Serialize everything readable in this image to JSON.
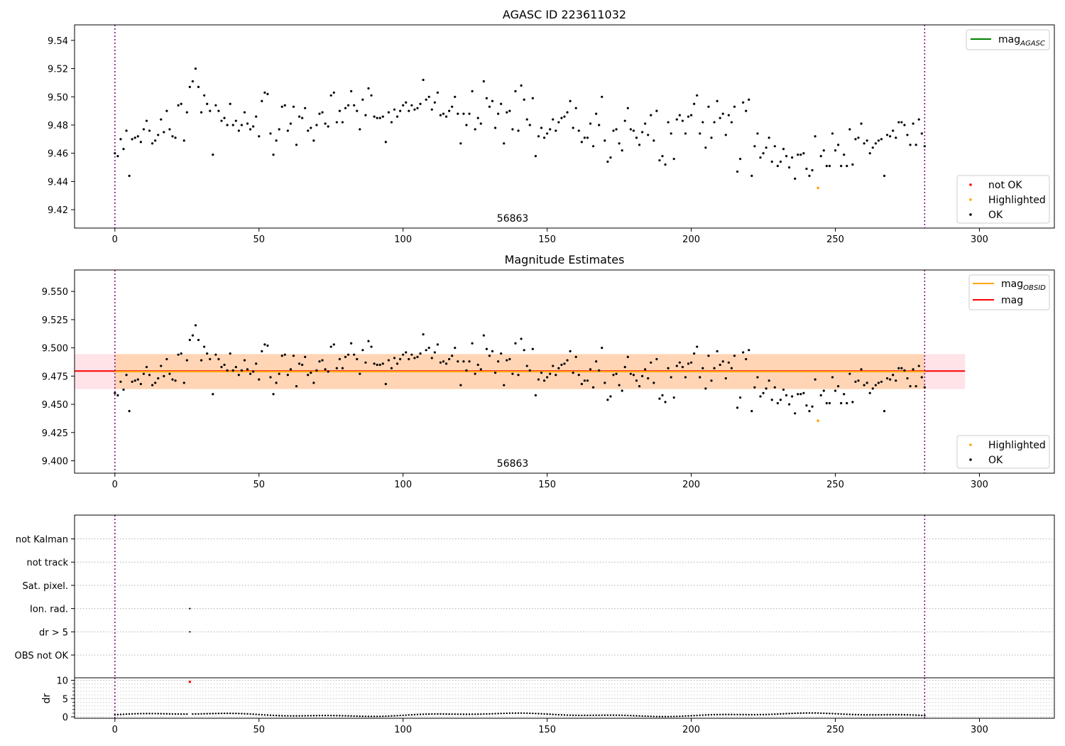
{
  "chart_data": [
    {
      "type": "scatter",
      "title": "AGASC ID 223611032",
      "xlim": [
        -14,
        326
      ],
      "ylim": [
        9.407,
        9.551
      ],
      "xticks": [
        0,
        50,
        100,
        150,
        200,
        250,
        300
      ],
      "yticks": [
        9.42,
        9.44,
        9.46,
        9.48,
        9.5,
        9.52,
        9.54
      ],
      "vlines": [
        0,
        281
      ],
      "annotation": {
        "text": "56863",
        "x": 140
      },
      "legend_upper": {
        "location": "upper-right",
        "entries": [
          {
            "label": "mag",
            "sub": "AGASC",
            "color": "#008000"
          }
        ]
      },
      "legend_lower": {
        "location": "lower-right",
        "entries": [
          {
            "label": "not OK",
            "color": "#ff0000"
          },
          {
            "label": "Highlighted",
            "color": "#ffa500"
          },
          {
            "label": "OK",
            "color": "#000000"
          }
        ]
      }
    },
    {
      "type": "scatter",
      "title": "Magnitude Estimates",
      "xlim": [
        -14,
        326
      ],
      "ylim": [
        9.389,
        9.569
      ],
      "xticks": [
        0,
        50,
        100,
        150,
        200,
        250,
        300
      ],
      "yticks": [
        9.4,
        9.425,
        9.45,
        9.475,
        9.5,
        9.525,
        9.55
      ],
      "vlines": [
        0,
        281
      ],
      "annotation": {
        "text": "56863",
        "x": 140
      },
      "mag_line": 9.4795,
      "mag_obsid_line": 9.479,
      "band": {
        "low": 9.4635,
        "high": 9.4945,
        "x_from": -14,
        "x_to": 295
      },
      "legend_upper": {
        "location": "upper-right",
        "entries": [
          {
            "label": "mag",
            "sub": "OBSID",
            "color": "#ffa500"
          },
          {
            "label": "mag",
            "sub": "",
            "color": "#ff0000"
          }
        ]
      },
      "legend_lower": {
        "location": "lower-right",
        "entries": [
          {
            "label": "Highlighted",
            "color": "#ffa500"
          },
          {
            "label": "OK",
            "color": "#000000"
          }
        ]
      }
    },
    {
      "type": "scatter",
      "title": "",
      "xlim": [
        -14,
        326
      ],
      "xticks": [
        0,
        50,
        100,
        150,
        200,
        250,
        300
      ],
      "vlines": [
        0,
        281
      ],
      "flag_rows": [
        "not Kalman",
        "not track",
        "Sat. pixel.",
        "Ion. rad.",
        "dr > 5",
        "OBS not OK"
      ],
      "flag_points": [
        {
          "row": "Ion. rad.",
          "x": 26
        },
        {
          "row": "dr > 5",
          "x": 26
        }
      ]
    },
    {
      "type": "scatter",
      "title": "",
      "ylabel": "dr",
      "xlim": [
        -14,
        326
      ],
      "ylim": [
        -0.4,
        10.7
      ],
      "yticks": [
        0,
        5,
        10
      ],
      "xticks": [
        0,
        50,
        100,
        150,
        200,
        250,
        300
      ],
      "vlines": [
        0,
        281
      ],
      "outlier": {
        "x": 26,
        "y": 9.6
      }
    }
  ],
  "magnitude_series": {
    "x_start": 0,
    "x_end": 281,
    "highlighted": {
      "x": 244,
      "y": 9.4355
    },
    "points": [
      {
        "x": 0,
        "y": 9.46
      },
      {
        "x": 1,
        "y": 9.458
      },
      {
        "x": 2,
        "y": 9.47
      },
      {
        "x": 3,
        "y": 9.463
      },
      {
        "x": 4,
        "y": 9.476
      },
      {
        "x": 5,
        "y": 9.444
      },
      {
        "x": 6,
        "y": 9.47
      },
      {
        "x": 7,
        "y": 9.471
      },
      {
        "x": 8,
        "y": 9.472
      },
      {
        "x": 9,
        "y": 9.468
      },
      {
        "x": 10,
        "y": 9.477
      },
      {
        "x": 11,
        "y": 9.483
      },
      {
        "x": 12,
        "y": 9.476
      },
      {
        "x": 13,
        "y": 9.467
      },
      {
        "x": 14,
        "y": 9.469
      },
      {
        "x": 15,
        "y": 9.473
      },
      {
        "x": 16,
        "y": 9.484
      },
      {
        "x": 17,
        "y": 9.475
      },
      {
        "x": 18,
        "y": 9.49
      },
      {
        "x": 19,
        "y": 9.477
      },
      {
        "x": 20,
        "y": 9.472
      },
      {
        "x": 21,
        "y": 9.471
      },
      {
        "x": 22,
        "y": 9.494
      },
      {
        "x": 23,
        "y": 9.495
      },
      {
        "x": 24,
        "y": 9.469
      },
      {
        "x": 25,
        "y": 9.489
      },
      {
        "x": 26,
        "y": 9.507
      },
      {
        "x": 27,
        "y": 9.511
      },
      {
        "x": 28,
        "y": 9.52
      },
      {
        "x": 29,
        "y": 9.507
      },
      {
        "x": 30,
        "y": 9.489
      },
      {
        "x": 31,
        "y": 9.501
      },
      {
        "x": 32,
        "y": 9.495
      },
      {
        "x": 33,
        "y": 9.49
      },
      {
        "x": 34,
        "y": 9.459
      },
      {
        "x": 35,
        "y": 9.494
      },
      {
        "x": 36,
        "y": 9.49
      },
      {
        "x": 37,
        "y": 9.483
      },
      {
        "x": 38,
        "y": 9.485
      },
      {
        "x": 39,
        "y": 9.48
      },
      {
        "x": 40,
        "y": 9.495
      },
      {
        "x": 41,
        "y": 9.48
      },
      {
        "x": 42,
        "y": 9.483
      },
      {
        "x": 43,
        "y": 9.476
      },
      {
        "x": 44,
        "y": 9.48
      },
      {
        "x": 45,
        "y": 9.489
      },
      {
        "x": 46,
        "y": 9.481
      },
      {
        "x": 47,
        "y": 9.477
      },
      {
        "x": 48,
        "y": 9.479
      },
      {
        "x": 49,
        "y": 9.486
      },
      {
        "x": 50,
        "y": 9.472
      },
      {
        "x": 51,
        "y": 9.497
      },
      {
        "x": 52,
        "y": 9.503
      },
      {
        "x": 53,
        "y": 9.502
      },
      {
        "x": 54,
        "y": 9.474
      },
      {
        "x": 55,
        "y": 9.459
      },
      {
        "x": 56,
        "y": 9.469
      },
      {
        "x": 57,
        "y": 9.477
      },
      {
        "x": 58,
        "y": 9.493
      },
      {
        "x": 59,
        "y": 9.494
      },
      {
        "x": 60,
        "y": 9.476
      },
      {
        "x": 61,
        "y": 9.481
      },
      {
        "x": 62,
        "y": 9.493
      },
      {
        "x": 63,
        "y": 9.466
      },
      {
        "x": 64,
        "y": 9.486
      },
      {
        "x": 65,
        "y": 9.485
      },
      {
        "x": 66,
        "y": 9.492
      },
      {
        "x": 67,
        "y": 9.476
      },
      {
        "x": 68,
        "y": 9.478
      },
      {
        "x": 69,
        "y": 9.469
      },
      {
        "x": 70,
        "y": 9.48
      },
      {
        "x": 71,
        "y": 9.488
      },
      {
        "x": 72,
        "y": 9.489
      },
      {
        "x": 73,
        "y": 9.481
      },
      {
        "x": 74,
        "y": 9.479
      },
      {
        "x": 75,
        "y": 9.501
      },
      {
        "x": 76,
        "y": 9.503
      },
      {
        "x": 77,
        "y": 9.482
      },
      {
        "x": 78,
        "y": 9.49
      },
      {
        "x": 79,
        "y": 9.482
      },
      {
        "x": 80,
        "y": 9.492
      },
      {
        "x": 81,
        "y": 9.494
      },
      {
        "x": 82,
        "y": 9.504
      },
      {
        "x": 83,
        "y": 9.494
      },
      {
        "x": 84,
        "y": 9.49
      },
      {
        "x": 85,
        "y": 9.477
      },
      {
        "x": 86,
        "y": 9.498
      },
      {
        "x": 87,
        "y": 9.487
      },
      {
        "x": 88,
        "y": 9.506
      },
      {
        "x": 89,
        "y": 9.501
      },
      {
        "x": 90,
        "y": 9.486
      },
      {
        "x": 91,
        "y": 9.485
      },
      {
        "x": 92,
        "y": 9.485
      },
      {
        "x": 93,
        "y": 9.486
      },
      {
        "x": 94,
        "y": 9.468
      },
      {
        "x": 95,
        "y": 9.489
      },
      {
        "x": 96,
        "y": 9.482
      },
      {
        "x": 97,
        "y": 9.491
      },
      {
        "x": 98,
        "y": 9.486
      },
      {
        "x": 99,
        "y": 9.49
      },
      {
        "x": 100,
        "y": 9.494
      },
      {
        "x": 101,
        "y": 9.496
      },
      {
        "x": 102,
        "y": 9.49
      },
      {
        "x": 103,
        "y": 9.494
      },
      {
        "x": 104,
        "y": 9.491
      },
      {
        "x": 105,
        "y": 9.492
      },
      {
        "x": 106,
        "y": 9.495
      },
      {
        "x": 107,
        "y": 9.512
      },
      {
        "x": 108,
        "y": 9.498
      },
      {
        "x": 109,
        "y": 9.5
      },
      {
        "x": 110,
        "y": 9.491
      },
      {
        "x": 111,
        "y": 9.496
      },
      {
        "x": 112,
        "y": 9.503
      },
      {
        "x": 113,
        "y": 9.487
      },
      {
        "x": 114,
        "y": 9.488
      },
      {
        "x": 115,
        "y": 9.486
      },
      {
        "x": 116,
        "y": 9.49
      },
      {
        "x": 117,
        "y": 9.493
      },
      {
        "x": 118,
        "y": 9.5
      },
      {
        "x": 119,
        "y": 9.488
      },
      {
        "x": 120,
        "y": 9.467
      },
      {
        "x": 121,
        "y": 9.488
      },
      {
        "x": 122,
        "y": 9.48
      },
      {
        "x": 123,
        "y": 9.488
      },
      {
        "x": 124,
        "y": 9.504
      },
      {
        "x": 125,
        "y": 9.477
      },
      {
        "x": 126,
        "y": 9.485
      },
      {
        "x": 127,
        "y": 9.481
      },
      {
        "x": 128,
        "y": 9.511
      },
      {
        "x": 129,
        "y": 9.499
      },
      {
        "x": 130,
        "y": 9.493
      },
      {
        "x": 131,
        "y": 9.497
      },
      {
        "x": 132,
        "y": 9.478
      },
      {
        "x": 133,
        "y": 9.488
      },
      {
        "x": 134,
        "y": 9.495
      },
      {
        "x": 135,
        "y": 9.467
      },
      {
        "x": 136,
        "y": 9.489
      },
      {
        "x": 137,
        "y": 9.49
      },
      {
        "x": 138,
        "y": 9.477
      },
      {
        "x": 139,
        "y": 9.504
      },
      {
        "x": 140,
        "y": 9.476
      },
      {
        "x": 141,
        "y": 9.508
      },
      {
        "x": 142,
        "y": 9.498
      },
      {
        "x": 143,
        "y": 9.484
      },
      {
        "x": 144,
        "y": 9.48
      },
      {
        "x": 145,
        "y": 9.499
      },
      {
        "x": 146,
        "y": 9.458
      },
      {
        "x": 147,
        "y": 9.472
      },
      {
        "x": 148,
        "y": 9.478
      },
      {
        "x": 149,
        "y": 9.471
      },
      {
        "x": 150,
        "y": 9.474
      },
      {
        "x": 151,
        "y": 9.477
      },
      {
        "x": 152,
        "y": 9.484
      },
      {
        "x": 153,
        "y": 9.476
      },
      {
        "x": 154,
        "y": 9.482
      },
      {
        "x": 155,
        "y": 9.485
      },
      {
        "x": 156,
        "y": 9.486
      },
      {
        "x": 157,
        "y": 9.489
      },
      {
        "x": 158,
        "y": 9.497
      },
      {
        "x": 159,
        "y": 9.478
      },
      {
        "x": 160,
        "y": 9.492
      },
      {
        "x": 161,
        "y": 9.476
      },
      {
        "x": 162,
        "y": 9.468
      },
      {
        "x": 163,
        "y": 9.471
      },
      {
        "x": 164,
        "y": 9.471
      },
      {
        "x": 165,
        "y": 9.481
      },
      {
        "x": 166,
        "y": 9.465
      },
      {
        "x": 167,
        "y": 9.488
      },
      {
        "x": 168,
        "y": 9.48
      },
      {
        "x": 169,
        "y": 9.5
      },
      {
        "x": 170,
        "y": 9.469
      },
      {
        "x": 171,
        "y": 9.454
      },
      {
        "x": 172,
        "y": 9.457
      },
      {
        "x": 173,
        "y": 9.476
      },
      {
        "x": 174,
        "y": 9.477
      },
      {
        "x": 175,
        "y": 9.467
      },
      {
        "x": 176,
        "y": 9.462
      },
      {
        "x": 177,
        "y": 9.483
      },
      {
        "x": 178,
        "y": 9.492
      },
      {
        "x": 179,
        "y": 9.477
      },
      {
        "x": 180,
        "y": 9.476
      },
      {
        "x": 181,
        "y": 9.471
      },
      {
        "x": 182,
        "y": 9.466
      },
      {
        "x": 183,
        "y": 9.475
      },
      {
        "x": 184,
        "y": 9.481
      },
      {
        "x": 185,
        "y": 9.473
      },
      {
        "x": 186,
        "y": 9.487
      },
      {
        "x": 187,
        "y": 9.469
      },
      {
        "x": 188,
        "y": 9.49
      },
      {
        "x": 189,
        "y": 9.455
      },
      {
        "x": 190,
        "y": 9.458
      },
      {
        "x": 191,
        "y": 9.452
      },
      {
        "x": 192,
        "y": 9.482
      },
      {
        "x": 193,
        "y": 9.474
      },
      {
        "x": 194,
        "y": 9.456
      },
      {
        "x": 195,
        "y": 9.484
      },
      {
        "x": 196,
        "y": 9.487
      },
      {
        "x": 197,
        "y": 9.483
      },
      {
        "x": 198,
        "y": 9.474
      },
      {
        "x": 199,
        "y": 9.486
      },
      {
        "x": 200,
        "y": 9.487
      },
      {
        "x": 201,
        "y": 9.495
      },
      {
        "x": 202,
        "y": 9.501
      },
      {
        "x": 203,
        "y": 9.474
      },
      {
        "x": 204,
        "y": 9.482
      },
      {
        "x": 205,
        "y": 9.464
      },
      {
        "x": 206,
        "y": 9.493
      },
      {
        "x": 207,
        "y": 9.471
      },
      {
        "x": 208,
        "y": 9.482
      },
      {
        "x": 209,
        "y": 9.497
      },
      {
        "x": 210,
        "y": 9.485
      },
      {
        "x": 211,
        "y": 9.488
      },
      {
        "x": 212,
        "y": 9.473
      },
      {
        "x": 213,
        "y": 9.487
      },
      {
        "x": 214,
        "y": 9.482
      },
      {
        "x": 215,
        "y": 9.493
      },
      {
        "x": 216,
        "y": 9.447
      },
      {
        "x": 217,
        "y": 9.456
      },
      {
        "x": 218,
        "y": 9.496
      },
      {
        "x": 219,
        "y": 9.49
      },
      {
        "x": 220,
        "y": 9.498
      },
      {
        "x": 221,
        "y": 9.444
      },
      {
        "x": 222,
        "y": 9.465
      },
      {
        "x": 223,
        "y": 9.474
      },
      {
        "x": 224,
        "y": 9.457
      },
      {
        "x": 225,
        "y": 9.46
      },
      {
        "x": 226,
        "y": 9.464
      },
      {
        "x": 227,
        "y": 9.471
      },
      {
        "x": 228,
        "y": 9.454
      },
      {
        "x": 229,
        "y": 9.465
      },
      {
        "x": 230,
        "y": 9.451
      },
      {
        "x": 231,
        "y": 9.454
      },
      {
        "x": 232,
        "y": 9.463
      },
      {
        "x": 233,
        "y": 9.458
      },
      {
        "x": 234,
        "y": 9.45
      },
      {
        "x": 235,
        "y": 9.457
      },
      {
        "x": 236,
        "y": 9.442
      },
      {
        "x": 237,
        "y": 9.459
      },
      {
        "x": 238,
        "y": 9.459
      },
      {
        "x": 239,
        "y": 9.46
      },
      {
        "x": 240,
        "y": 9.449
      },
      {
        "x": 241,
        "y": 9.444
      },
      {
        "x": 242,
        "y": 9.448
      },
      {
        "x": 243,
        "y": 9.472
      },
      {
        "x": 245,
        "y": 9.458
      },
      {
        "x": 246,
        "y": 9.462
      },
      {
        "x": 247,
        "y": 9.451
      },
      {
        "x": 248,
        "y": 9.451
      },
      {
        "x": 249,
        "y": 9.474
      },
      {
        "x": 250,
        "y": 9.462
      },
      {
        "x": 251,
        "y": 9.466
      },
      {
        "x": 252,
        "y": 9.451
      },
      {
        "x": 253,
        "y": 9.459
      },
      {
        "x": 254,
        "y": 9.451
      },
      {
        "x": 255,
        "y": 9.477
      },
      {
        "x": 256,
        "y": 9.452
      },
      {
        "x": 257,
        "y": 9.47
      },
      {
        "x": 258,
        "y": 9.471
      },
      {
        "x": 259,
        "y": 9.481
      },
      {
        "x": 260,
        "y": 9.467
      },
      {
        "x": 261,
        "y": 9.469
      },
      {
        "x": 262,
        "y": 9.46
      },
      {
        "x": 263,
        "y": 9.464
      },
      {
        "x": 264,
        "y": 9.467
      },
      {
        "x": 265,
        "y": 9.469
      },
      {
        "x": 266,
        "y": 9.47
      },
      {
        "x": 267,
        "y": 9.444
      },
      {
        "x": 268,
        "y": 9.473
      },
      {
        "x": 269,
        "y": 9.472
      },
      {
        "x": 270,
        "y": 9.476
      },
      {
        "x": 271,
        "y": 9.471
      },
      {
        "x": 272,
        "y": 9.482
      },
      {
        "x": 273,
        "y": 9.482
      },
      {
        "x": 274,
        "y": 9.48
      },
      {
        "x": 275,
        "y": 9.473
      },
      {
        "x": 276,
        "y": 9.466
      },
      {
        "x": 277,
        "y": 9.481
      },
      {
        "x": 278,
        "y": 9.466
      },
      {
        "x": 279,
        "y": 9.484
      },
      {
        "x": 280,
        "y": 9.474
      },
      {
        "x": 281,
        "y": 9.465
      }
    ]
  }
}
